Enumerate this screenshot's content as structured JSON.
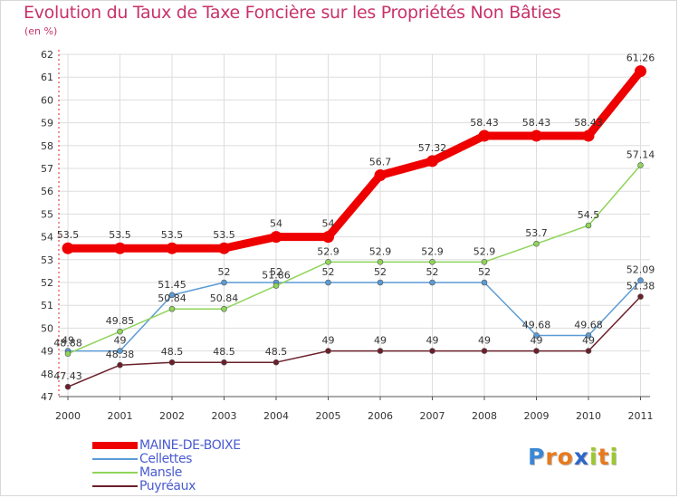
{
  "header": {
    "title": "Evolution du Taux de Taxe Foncière sur les Propriétés Non Bâties",
    "unit": "(en %)"
  },
  "chart_data": {
    "type": "line",
    "title": "Evolution du Taux de Taxe Foncière sur les Propriétés Non Bâties",
    "ylabel": "(en %)",
    "xlabel": "",
    "ylim": [
      47,
      62
    ],
    "y_ticks": [
      "47",
      "48",
      "49",
      "50",
      "51",
      "52",
      "53",
      "54",
      "55",
      "56",
      "57",
      "58",
      "59",
      "60",
      "61",
      "62"
    ],
    "categories": [
      "2000",
      "2001",
      "2002",
      "2003",
      "2004",
      "2005",
      "2006",
      "2007",
      "2008",
      "2009",
      "2010",
      "2011"
    ],
    "grid": true,
    "series": [
      {
        "name": "Puyréaux",
        "color": "#6b1f2a",
        "values": [
          47.43,
          48.38,
          48.5,
          48.5,
          48.5,
          49,
          49,
          49,
          49,
          49,
          49,
          51.38
        ],
        "labels": [
          "47.43",
          "48.38",
          "48.5",
          "48.5",
          "48.5",
          "49",
          "49",
          "49",
          "49",
          "49",
          "49",
          "51.38"
        ]
      },
      {
        "name": "Cellettes",
        "color": "#5b9bd5",
        "values": [
          49,
          49,
          51.45,
          52,
          52,
          52,
          52,
          52,
          52,
          49.68,
          49.68,
          52.09
        ],
        "labels": [
          "49",
          "49",
          "51.45",
          "52",
          "52",
          "52",
          "52",
          "52",
          "52",
          "49.68",
          "49.68",
          "52.09"
        ]
      },
      {
        "name": "Mansle",
        "color": "#8fd45a",
        "values": [
          48.88,
          49.85,
          50.84,
          50.84,
          51.86,
          52.9,
          52.9,
          52.9,
          52.9,
          53.7,
          54.5,
          57.14
        ],
        "labels": [
          "48.88",
          "49.85",
          "50.84",
          "50.84",
          "51.86",
          "52.9",
          "52.9",
          "52.9",
          "52.9",
          "53.7",
          "54.5",
          "57.14"
        ]
      },
      {
        "name": "MAINE-DE-BOIXE",
        "color": "#ee0000",
        "values": [
          53.5,
          53.5,
          53.5,
          53.5,
          54,
          54,
          56.7,
          57.32,
          58.43,
          58.43,
          58.43,
          61.26
        ],
        "labels": [
          "53.5",
          "53.5",
          "53.5",
          "53.5",
          "54",
          "54",
          "56.7",
          "57.32",
          "58.43",
          "58.43",
          "58.43",
          "61.26"
        ]
      }
    ]
  },
  "legend": {
    "items": [
      {
        "label": "MAINE-DE-BOIXE",
        "color": "#ee0000"
      },
      {
        "label": "Cellettes",
        "color": "#5b9bd5"
      },
      {
        "label": "Mansle",
        "color": "#8fd45a"
      },
      {
        "label": "Puyréaux",
        "color": "#6b1f2a"
      }
    ]
  },
  "logo": {
    "letters": [
      "P",
      "r",
      "o",
      "x",
      "i",
      "t",
      "i"
    ],
    "colors": [
      "#3b87d6",
      "#e87a1e",
      "#e87a1e",
      "#2f66c9",
      "#9bc92b",
      "#e87a1e",
      "#9bc92b"
    ]
  }
}
